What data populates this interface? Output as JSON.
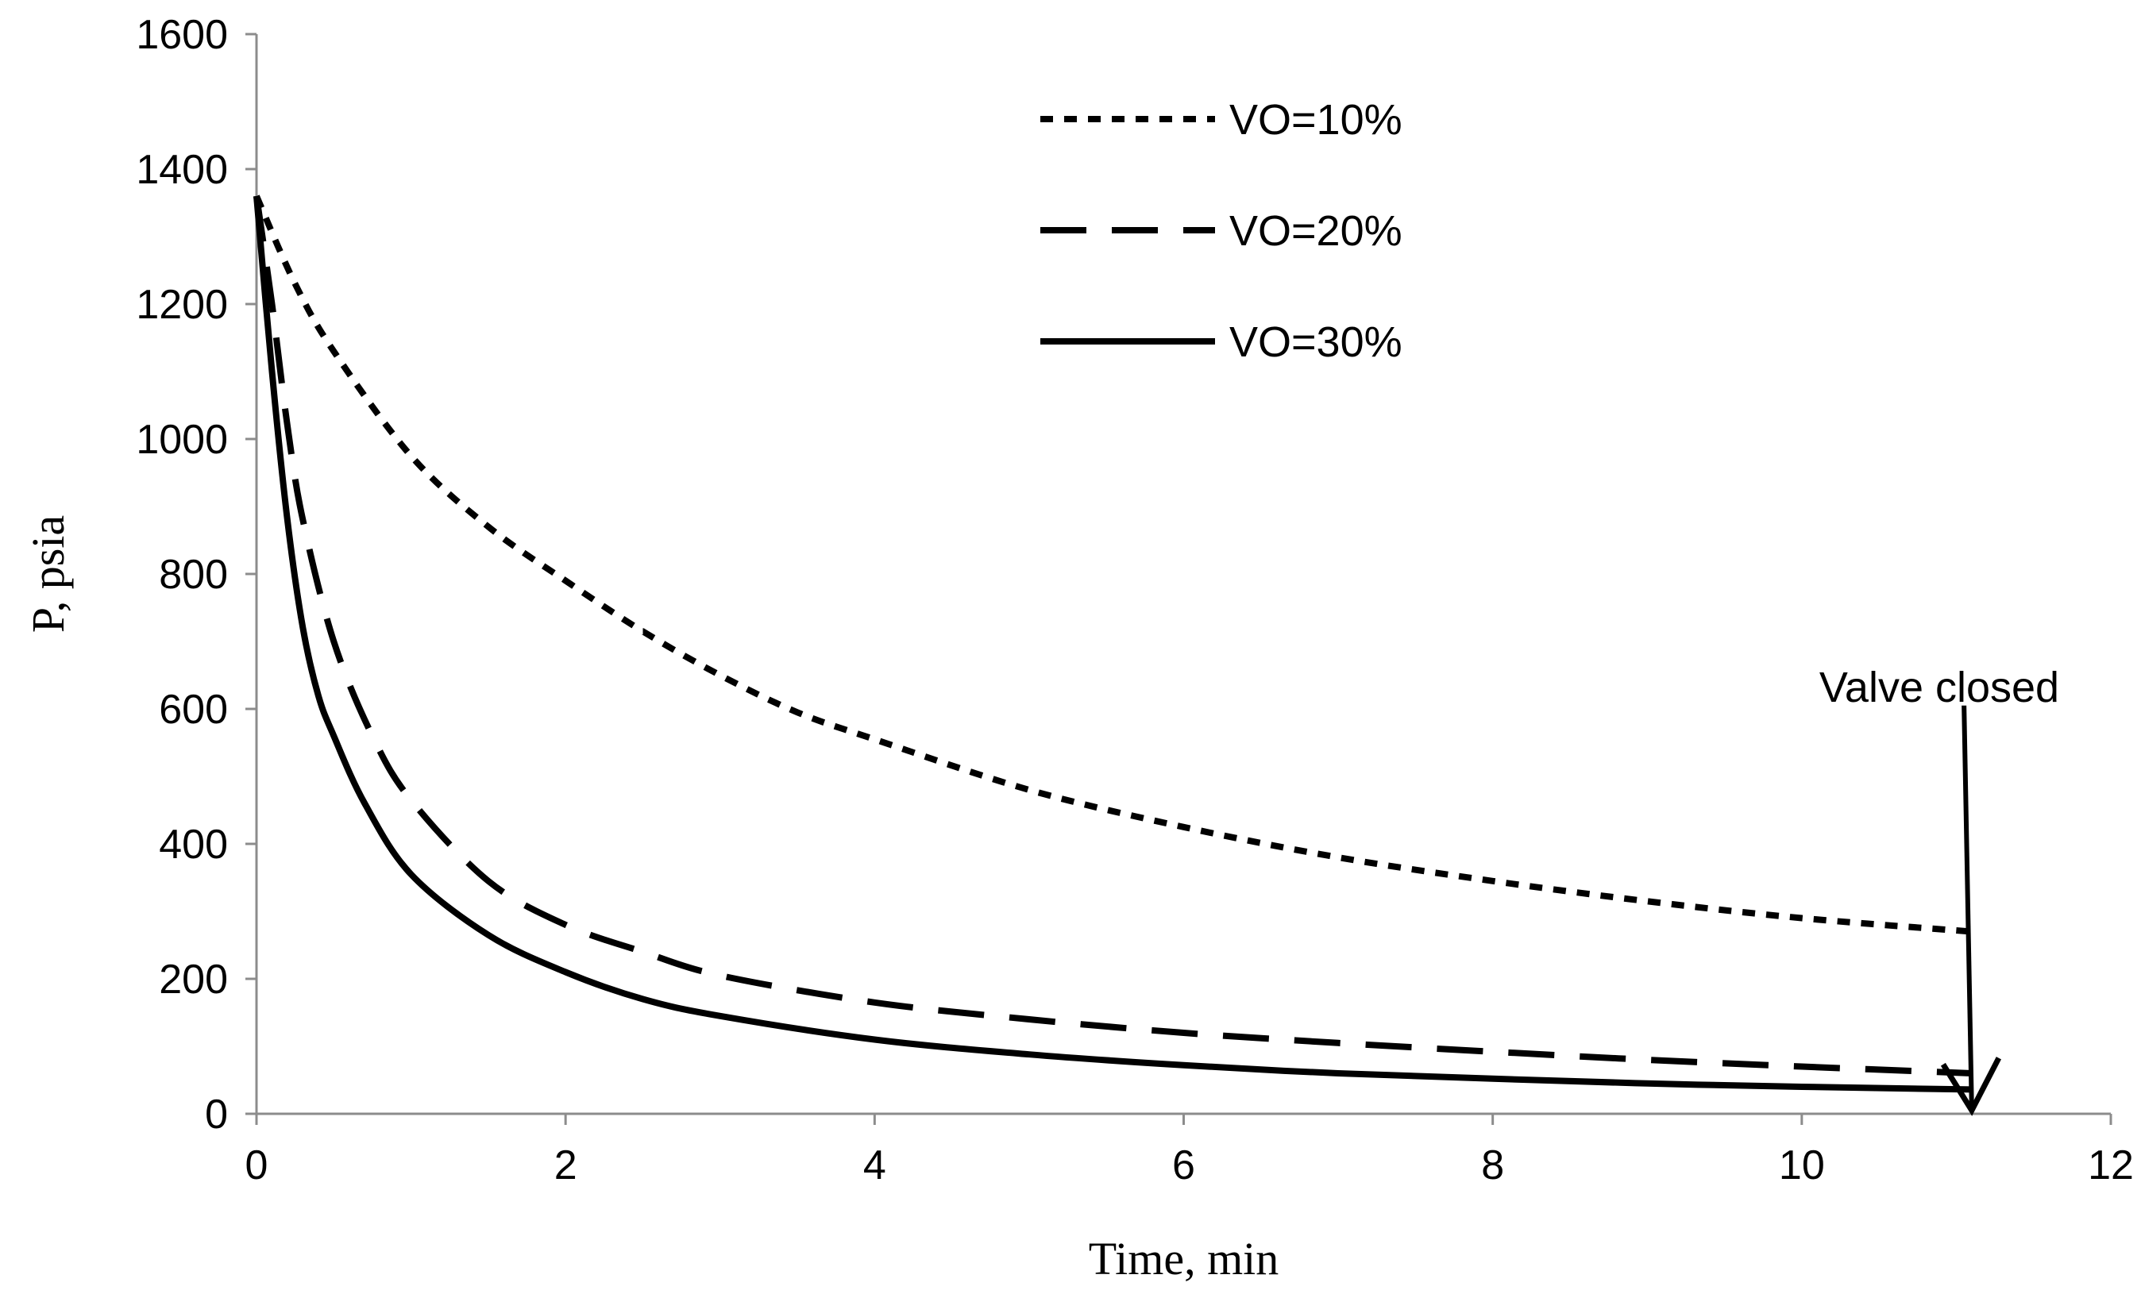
{
  "chart_data": {
    "type": "line",
    "title": "",
    "xlabel": "Time, min",
    "ylabel": "P, psia",
    "xlim": [
      0,
      12
    ],
    "ylim": [
      0,
      1600
    ],
    "xticks": [
      0,
      2,
      4,
      6,
      8,
      10,
      12
    ],
    "yticks": [
      0,
      200,
      400,
      600,
      800,
      1000,
      1200,
      1400,
      1600
    ],
    "x_tick_labels": [
      "0",
      "2",
      "4",
      "6",
      "8",
      "10",
      "12"
    ],
    "y_tick_labels": [
      "0",
      "200",
      "400",
      "600",
      "800",
      "1000",
      "1200",
      "1400",
      "1600"
    ],
    "grid": false,
    "legend_position": "top-center",
    "series": [
      {
        "name": "VO=10%",
        "style": "short-dash",
        "color": "#000000",
        "x": [
          0,
          0.25,
          0.5,
          1,
          1.5,
          2,
          2.5,
          3,
          3.5,
          4,
          5,
          6,
          7,
          8,
          9,
          10,
          11.1
        ],
        "y": [
          1360,
          1230,
          1130,
          975,
          870,
          790,
          715,
          650,
          595,
          555,
          480,
          425,
          380,
          345,
          315,
          290,
          270
        ]
      },
      {
        "name": "VO=20%",
        "style": "long-dash",
        "color": "#000000",
        "x": [
          0,
          0.1,
          0.2,
          0.3,
          0.5,
          0.75,
          1,
          1.5,
          2,
          2.5,
          3,
          4,
          5,
          6,
          7,
          8,
          9,
          10,
          11.1
        ],
        "y": [
          1360,
          1200,
          1020,
          880,
          700,
          560,
          465,
          345,
          280,
          240,
          205,
          165,
          140,
          120,
          105,
          92,
          80,
          70,
          60
        ]
      },
      {
        "name": "VO=30%",
        "style": "solid",
        "color": "#000000",
        "x": [
          0,
          0.1,
          0.2,
          0.3,
          0.4,
          0.5,
          0.7,
          1,
          1.5,
          2,
          2.5,
          3,
          4,
          5,
          6,
          7,
          8,
          9,
          10,
          11.1
        ],
        "y": [
          1360,
          1100,
          880,
          720,
          620,
          560,
          460,
          355,
          265,
          210,
          170,
          145,
          110,
          88,
          72,
          60,
          52,
          45,
          40,
          36
        ]
      }
    ],
    "annotations": [
      {
        "text": "Valve closed",
        "arrow_from": [
          11.05,
          605
        ],
        "arrow_to": [
          11.1,
          5
        ]
      }
    ]
  }
}
